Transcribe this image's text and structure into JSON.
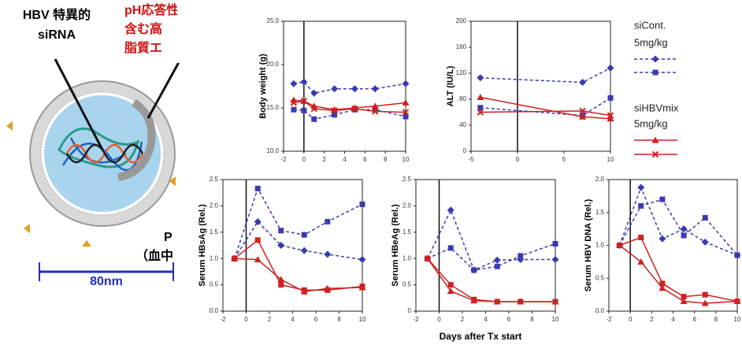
{
  "illustration": {
    "labels": [
      "HBV 特異的",
      "siRNA",
      "pH応答性脂質を",
      "含む高",
      "脂質エ",
      "P",
      "（血中",
      "80nm"
    ]
  },
  "legend": [
    {
      "lines": [
        "siCont.",
        "5mg/kg"
      ]
    },
    {
      "lines": [
        "siHBVmix",
        "5mg/kg"
      ]
    }
  ],
  "x_axis_label": "Days after Tx start",
  "chart_data": [
    {
      "type": "line",
      "y_label": "Body weight (g)",
      "x": [
        -1,
        0,
        1,
        3,
        5,
        7,
        10
      ],
      "xlim": [
        -2,
        10
      ],
      "xticks": [
        -2,
        0,
        2,
        4,
        6,
        8,
        10
      ],
      "ylim": [
        10,
        25
      ],
      "yticks": [
        {
          "value": 10,
          "label": "10.0"
        },
        {
          "value": 15,
          "label": "15.0"
        },
        {
          "value": 20,
          "label": "20.0"
        },
        {
          "value": 25,
          "label": "25.0"
        }
      ],
      "series": [
        {
          "color": "#3a3ab0",
          "marker": "diamond",
          "dash": true,
          "values": [
            17.8,
            18.0,
            16.7,
            17.2,
            17.2,
            17.2,
            17.8
          ]
        },
        {
          "color": "#3a3ab0",
          "marker": "square",
          "dash": true,
          "values": [
            14.8,
            14.7,
            13.7,
            14.2,
            14.8,
            14.8,
            14.0
          ]
        },
        {
          "color": "#d02020",
          "marker": "triangle",
          "dash": false,
          "values": [
            15.9,
            15.8,
            15.2,
            14.8,
            15.0,
            15.2,
            15.6
          ]
        },
        {
          "color": "#d02020",
          "marker": "x",
          "dash": false,
          "values": [
            15.6,
            15.8,
            14.9,
            14.7,
            14.9,
            14.6,
            14.5
          ]
        }
      ]
    },
    {
      "type": "line",
      "y_label": "ALT (IU/L)",
      "x": [
        -4,
        7,
        10
      ],
      "xlim": [
        -5,
        10
      ],
      "xticks": [
        -5,
        0,
        5,
        10
      ],
      "ylim": [
        0,
        200
      ],
      "yticks": [
        0,
        40,
        80,
        120,
        160,
        200
      ],
      "series": [
        {
          "color": "#3a3ab0",
          "marker": "diamond",
          "dash": true,
          "values": [
            113,
            106,
            128
          ]
        },
        {
          "color": "#3a3ab0",
          "marker": "square",
          "dash": true,
          "values": [
            67,
            55,
            82
          ]
        },
        {
          "color": "#d02020",
          "marker": "triangle",
          "dash": false,
          "values": [
            83,
            53,
            50
          ]
        },
        {
          "color": "#d02020",
          "marker": "x",
          "dash": false,
          "values": [
            60,
            62,
            55
          ]
        }
      ]
    },
    {
      "type": "line",
      "y_label": "Serum HBsAg (Rel.)",
      "x": [
        -1,
        1,
        3,
        5,
        7,
        10
      ],
      "xlim": [
        -2,
        10
      ],
      "xticks": [
        -2,
        0,
        2,
        4,
        6,
        8,
        10
      ],
      "ylim": [
        0,
        2.5
      ],
      "yticks": [
        {
          "value": 0,
          "label": "0.0"
        },
        0.5,
        {
          "value": 1,
          "label": "1.0"
        },
        1.5,
        {
          "value": 2,
          "label": "2.0"
        },
        2.5
      ],
      "series": [
        {
          "color": "#3a3ab0",
          "marker": "square",
          "dash": true,
          "values": [
            1.0,
            2.33,
            1.53,
            1.45,
            1.7,
            2.03
          ]
        },
        {
          "color": "#3a3ab0",
          "marker": "diamond",
          "dash": true,
          "values": [
            1.0,
            1.7,
            1.25,
            1.15,
            1.08,
            0.98
          ]
        },
        {
          "color": "#d02020",
          "marker": "triangle",
          "dash": false,
          "values": [
            1.0,
            0.98,
            0.6,
            0.37,
            0.43,
            0.45
          ]
        },
        {
          "color": "#d02020",
          "marker": "square",
          "dash": false,
          "values": [
            1.0,
            1.35,
            0.5,
            0.4,
            0.4,
            0.47
          ]
        }
      ]
    },
    {
      "type": "line",
      "y_label": "Serum HBeAg (Rel.)",
      "x": [
        -1,
        1,
        3,
        5,
        7,
        10
      ],
      "xlim": [
        -2,
        10
      ],
      "xticks": [
        -2,
        0,
        2,
        4,
        6,
        8,
        10
      ],
      "ylim": [
        0,
        2.5
      ],
      "yticks": [
        0,
        0.5,
        {
          "value": 1,
          "label": "1.0"
        },
        1.5,
        {
          "value": 2,
          "label": "2.0"
        },
        2.5
      ],
      "series": [
        {
          "color": "#3a3ab0",
          "marker": "diamond",
          "dash": true,
          "values": [
            1.0,
            1.92,
            0.78,
            0.97,
            0.98,
            0.98
          ]
        },
        {
          "color": "#3a3ab0",
          "marker": "square",
          "dash": true,
          "values": [
            1.0,
            1.2,
            0.78,
            0.85,
            1.05,
            1.28
          ]
        },
        {
          "color": "#d02020",
          "marker": "triangle",
          "dash": false,
          "values": [
            1.0,
            0.38,
            0.2,
            0.18,
            0.18,
            0.18
          ]
        },
        {
          "color": "#d02020",
          "marker": "square",
          "dash": false,
          "values": [
            1.0,
            0.5,
            0.22,
            0.18,
            0.18,
            0.18
          ]
        }
      ]
    },
    {
      "type": "line",
      "y_label": "Serum HBV DNA (Rel.)",
      "x": [
        -1,
        1,
        3,
        5,
        7,
        10
      ],
      "xlim": [
        -2,
        10
      ],
      "xticks": [
        -2,
        0,
        2,
        4,
        6,
        8,
        10
      ],
      "ylim": [
        0,
        2
      ],
      "yticks": [
        {
          "value": 0,
          "label": "0.0"
        },
        0.5,
        {
          "value": 1,
          "label": "1.0"
        },
        1.5,
        {
          "value": 2,
          "label": "2.0"
        }
      ],
      "series": [
        {
          "color": "#3a3ab0",
          "marker": "diamond",
          "dash": true,
          "values": [
            1.0,
            1.88,
            1.1,
            1.25,
            1.05,
            0.85
          ]
        },
        {
          "color": "#3a3ab0",
          "marker": "square",
          "dash": true,
          "values": [
            1.0,
            1.6,
            1.7,
            1.15,
            1.42,
            0.85
          ]
        },
        {
          "color": "#d02020",
          "marker": "square",
          "dash": false,
          "values": [
            1.0,
            1.12,
            0.42,
            0.22,
            0.25,
            0.15
          ]
        },
        {
          "color": "#d02020",
          "marker": "triangle",
          "dash": false,
          "values": [
            1.0,
            0.75,
            0.35,
            0.15,
            0.12,
            0.15
          ]
        }
      ]
    }
  ]
}
